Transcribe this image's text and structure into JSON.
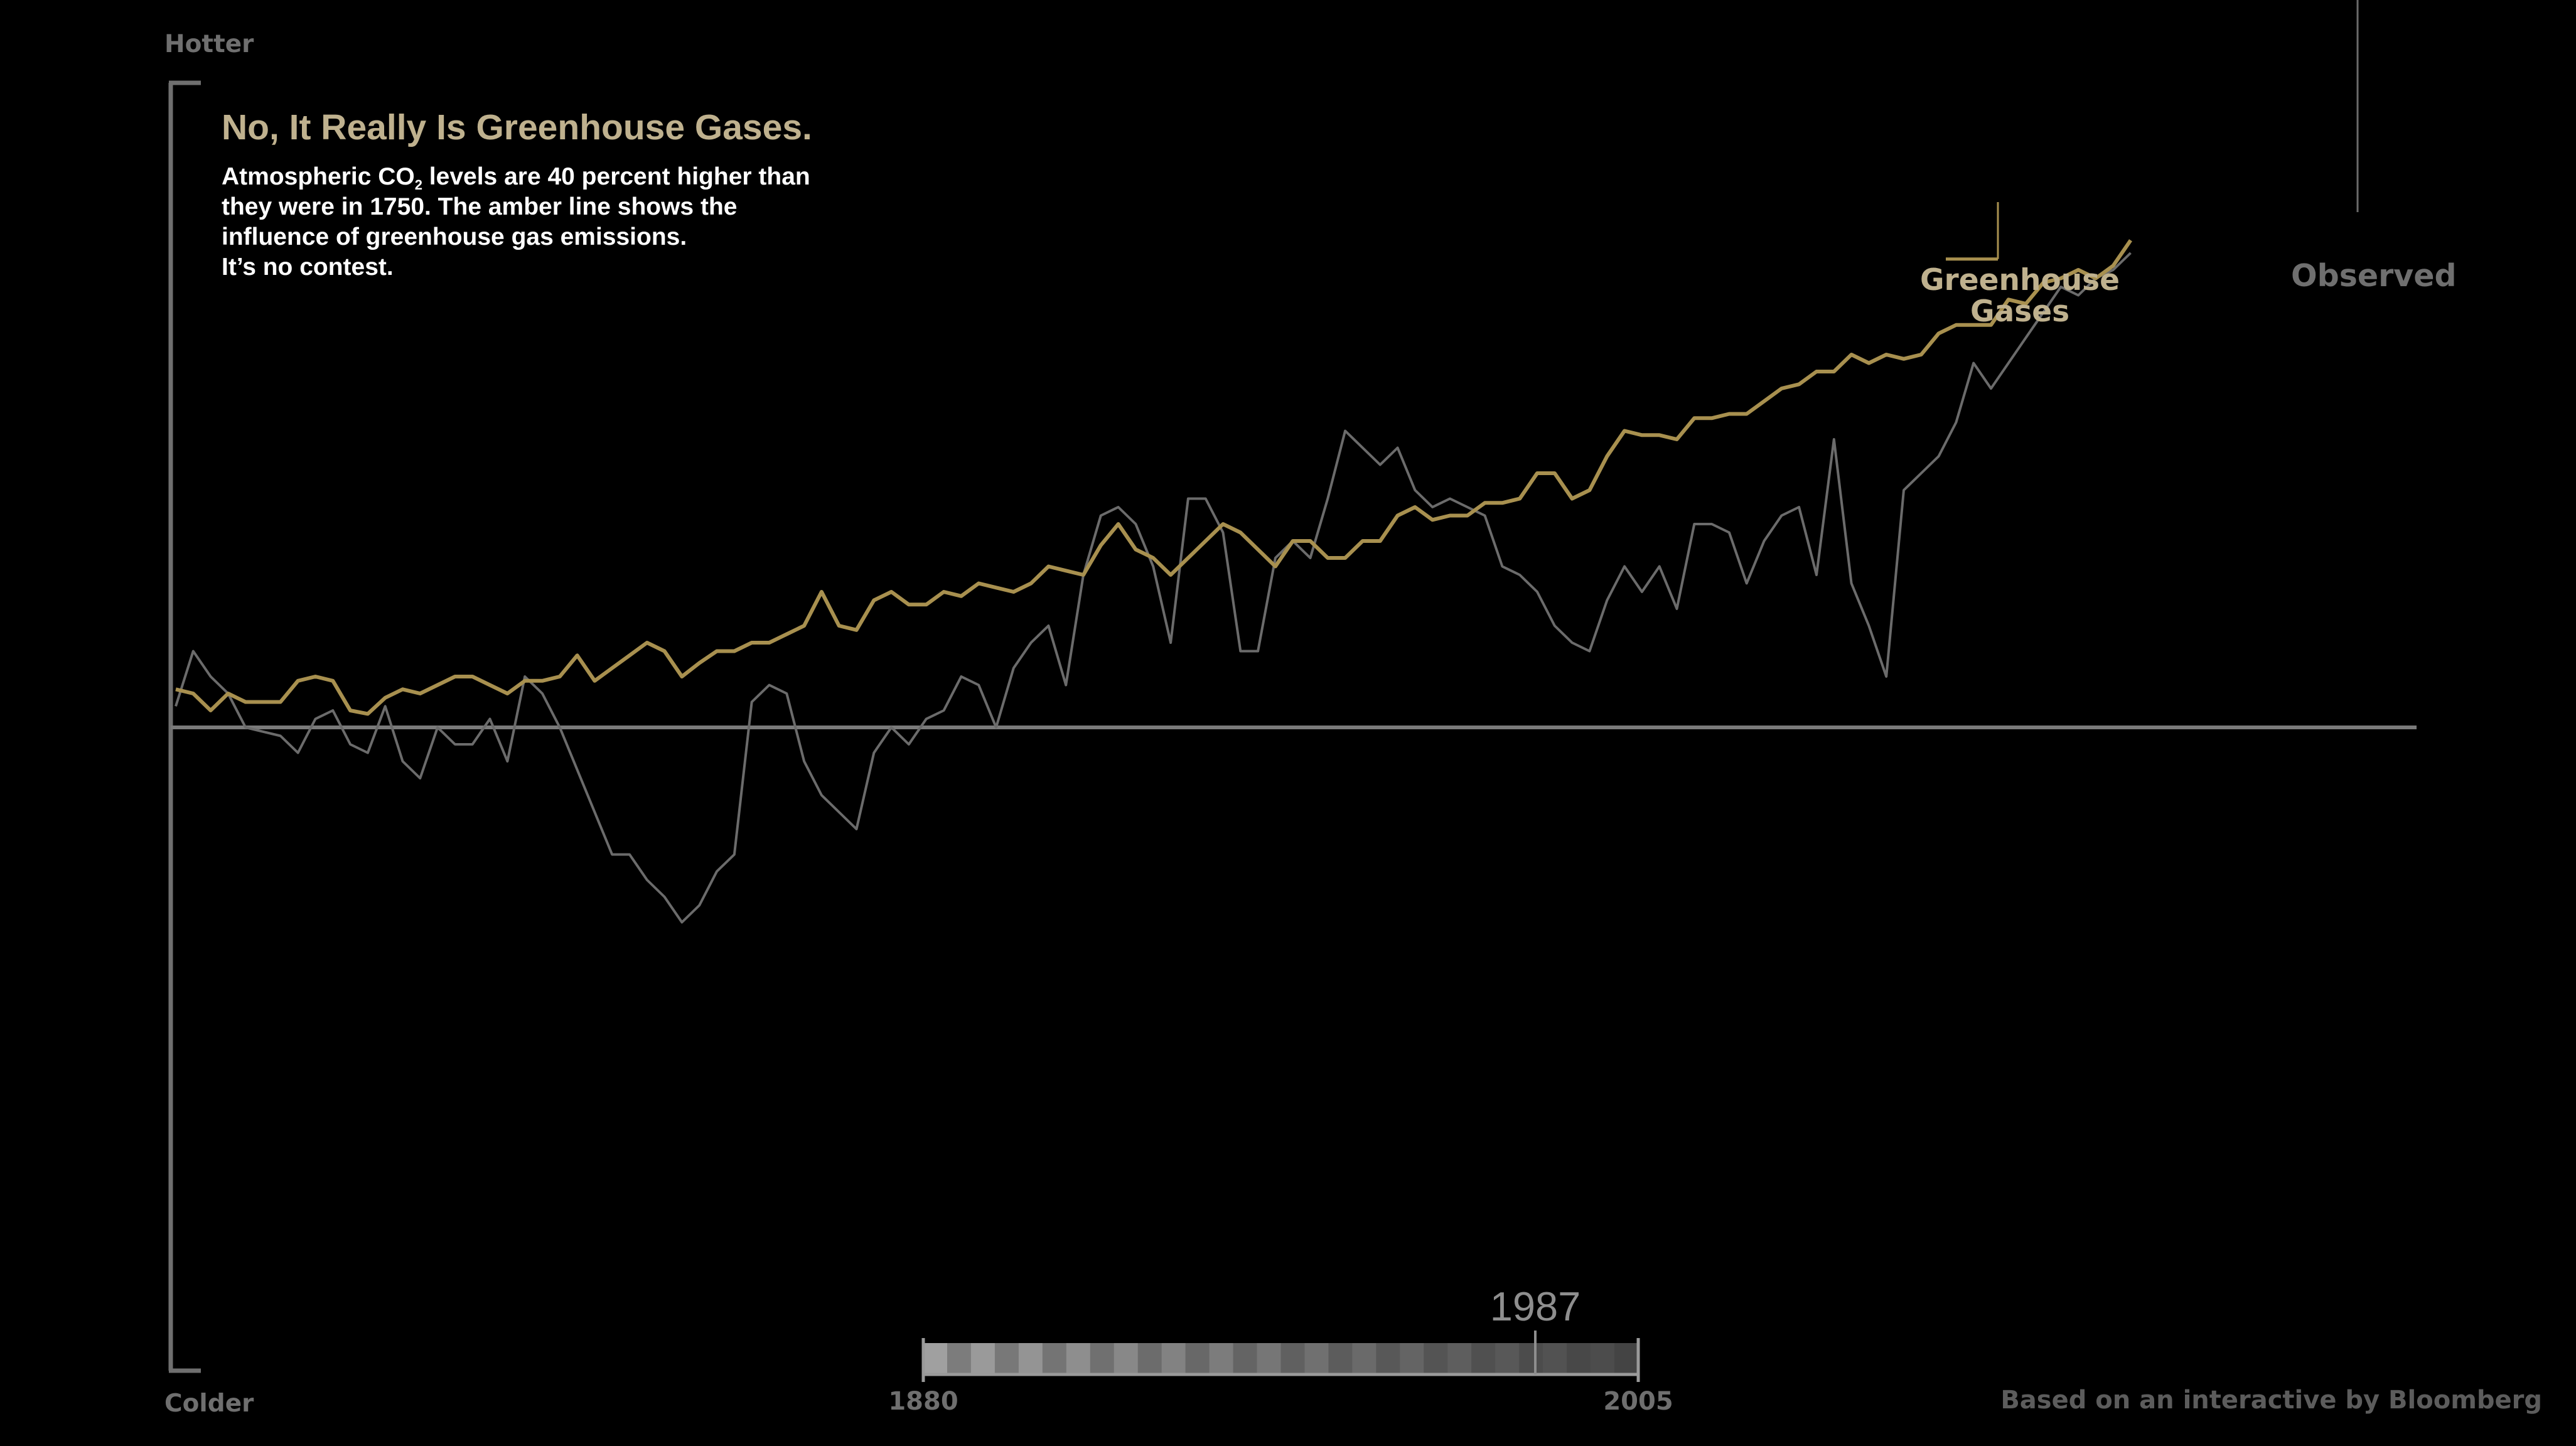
{
  "axis": {
    "top_label": "Hotter",
    "bottom_label": "Colder"
  },
  "credit": "Based on an interactive by Bloomberg",
  "timeline": {
    "start_label": "1880",
    "end_label": "2005",
    "current_label": "1987",
    "start_year": 1880,
    "end_year": 2005,
    "current_year": 1987
  },
  "colors": {
    "background": "#000000",
    "greenhouse": "#a8904f",
    "greenhouse_label": "#bfb18e",
    "observed": "#6b6b6b",
    "axis": "#6f6f6f",
    "subtitle": "#ffffff"
  },
  "chart_data": {
    "type": "line",
    "title": "No, It Really Is Greenhouse Gases.",
    "subtitle_lines": [
      "Atmospheric CO₂ levels are 40 percent higher than",
      "they were in 1750.  The amber line shows the",
      "influence of greenhouse gas emissions.",
      "It’s no contest."
    ],
    "x_range": [
      1880,
      2005
    ],
    "y_range": [
      -0.56,
      0.62
    ],
    "grid": false,
    "zero_line": true,
    "series": [
      {
        "name": "Greenhouse Gases",
        "color": "#a8904f",
        "x_start": 1880,
        "values": [
          0.045,
          0.04,
          0.02,
          0.04,
          0.03,
          0.03,
          0.03,
          0.055,
          0.06,
          0.055,
          0.02,
          0.016,
          0.035,
          0.045,
          0.04,
          0.05,
          0.06,
          0.06,
          0.05,
          0.04,
          0.055,
          0.055,
          0.06,
          0.085,
          0.055,
          0.07,
          0.085,
          0.1,
          0.09,
          0.06,
          0.076,
          0.09,
          0.09,
          0.1,
          0.1,
          0.11,
          0.12,
          0.16,
          0.12,
          0.115,
          0.15,
          0.16,
          0.145,
          0.145,
          0.16,
          0.155,
          0.17,
          0.165,
          0.16,
          0.17,
          0.19,
          0.185,
          0.18,
          0.215,
          0.24,
          0.21,
          0.2,
          0.18,
          0.2,
          0.22,
          0.24,
          0.23,
          0.21,
          0.19,
          0.22,
          0.22,
          0.2,
          0.2,
          0.22,
          0.22,
          0.25,
          0.26,
          0.245,
          0.25,
          0.25,
          0.265,
          0.265,
          0.27,
          0.3,
          0.3,
          0.27,
          0.28,
          0.32,
          0.35,
          0.345,
          0.345,
          0.34,
          0.365,
          0.365,
          0.37,
          0.37,
          0.385,
          0.4,
          0.405,
          0.42,
          0.42,
          0.44,
          0.43,
          0.44,
          0.435,
          0.44,
          0.465,
          0.475,
          0.475,
          0.475,
          0.505,
          0.5,
          0.525,
          0.53,
          0.54,
          0.53,
          0.545,
          0.575
        ]
      },
      {
        "name": "Observed",
        "color": "#6b6b6b",
        "x_start": 1880,
        "values": [
          0.025,
          0.09,
          0.06,
          0.04,
          0.0,
          -0.005,
          -0.01,
          -0.03,
          0.01,
          0.02,
          -0.02,
          -0.03,
          0.025,
          -0.04,
          -0.06,
          0.0,
          -0.02,
          -0.02,
          0.01,
          -0.04,
          0.06,
          0.04,
          0.0,
          -0.05,
          -0.1,
          -0.15,
          -0.15,
          -0.18,
          -0.2,
          -0.23,
          -0.21,
          -0.17,
          -0.15,
          0.03,
          0.05,
          0.04,
          -0.04,
          -0.08,
          -0.1,
          -0.12,
          -0.03,
          0.0,
          -0.02,
          0.01,
          0.02,
          0.06,
          0.05,
          0.0,
          0.07,
          0.1,
          0.12,
          0.05,
          0.18,
          0.25,
          0.26,
          0.24,
          0.19,
          0.1,
          0.27,
          0.27,
          0.23,
          0.09,
          0.09,
          0.2,
          0.22,
          0.2,
          0.27,
          0.35,
          0.33,
          0.31,
          0.33,
          0.28,
          0.26,
          0.27,
          0.26,
          0.25,
          0.19,
          0.18,
          0.16,
          0.12,
          0.1,
          0.09,
          0.15,
          0.19,
          0.16,
          0.19,
          0.14,
          0.24,
          0.24,
          0.23,
          0.17,
          0.22,
          0.25,
          0.26,
          0.18,
          0.34,
          0.17,
          0.12,
          0.06,
          0.28,
          0.3,
          0.32,
          0.36,
          0.43,
          0.4,
          0.43,
          0.46,
          0.49,
          0.52,
          0.51,
          0.53,
          0.54,
          0.56
        ]
      }
    ],
    "tick_labels": []
  }
}
